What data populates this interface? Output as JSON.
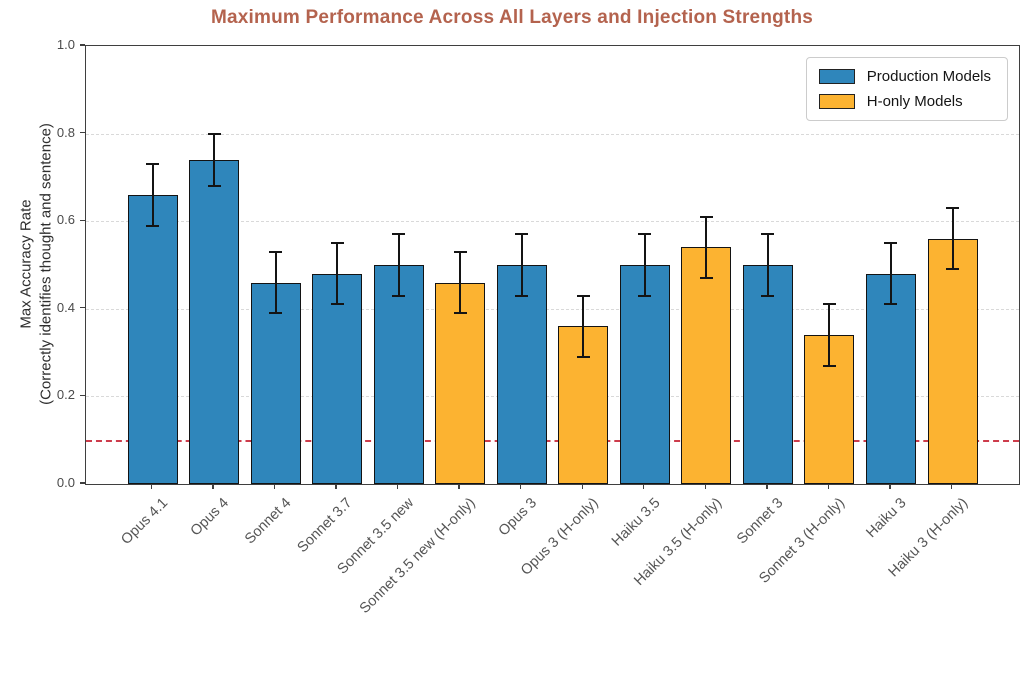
{
  "colors": {
    "production": "#2f86bb",
    "h_only": "#fcb331",
    "title": "#b4634e",
    "baseline": "#cd3c4b",
    "grid": "#d9d9d9",
    "bar_edge": "#131313",
    "error_bar": "#141414",
    "axis": "#3f3f3f"
  },
  "legend": {
    "items": [
      {
        "label": "Production Models",
        "color_key": "production"
      },
      {
        "label": "H-only Models",
        "color_key": "h_only"
      }
    ]
  },
  "chart_data": {
    "type": "bar",
    "title": "Maximum Performance Across All Layers and Injection Strengths",
    "ylabel_line1": "Max Accuracy Rate",
    "ylabel_line2": "(Correctly identifies thought and sentence)",
    "xlabel": "",
    "ylim": [
      0.0,
      1.0
    ],
    "y_ticks": [
      "0.0",
      "0.2",
      "0.4",
      "0.6",
      "0.8",
      "1.0"
    ],
    "grid": "horizontal-dashed",
    "reference_line": 0.1,
    "legend_position": "upper right",
    "bars": [
      {
        "label": "Opus 4.1",
        "group": "production",
        "value": 0.66,
        "err": 0.07
      },
      {
        "label": "Opus 4",
        "group": "production",
        "value": 0.74,
        "err": 0.06
      },
      {
        "label": "Sonnet 4",
        "group": "production",
        "value": 0.46,
        "err": 0.07
      },
      {
        "label": "Sonnet 3.7",
        "group": "production",
        "value": 0.48,
        "err": 0.07
      },
      {
        "label": "Sonnet 3.5 new",
        "group": "production",
        "value": 0.5,
        "err": 0.07
      },
      {
        "label": "Sonnet 3.5 new (H-only)",
        "group": "h_only",
        "value": 0.46,
        "err": 0.07
      },
      {
        "label": "Opus 3",
        "group": "production",
        "value": 0.5,
        "err": 0.07
      },
      {
        "label": "Opus 3 (H-only)",
        "group": "h_only",
        "value": 0.36,
        "err": 0.07
      },
      {
        "label": "Haiku 3.5",
        "group": "production",
        "value": 0.5,
        "err": 0.07
      },
      {
        "label": "Haiku 3.5 (H-only)",
        "group": "h_only",
        "value": 0.54,
        "err": 0.07
      },
      {
        "label": "Sonnet 3",
        "group": "production",
        "value": 0.5,
        "err": 0.07
      },
      {
        "label": "Sonnet 3 (H-only)",
        "group": "h_only",
        "value": 0.34,
        "err": 0.07
      },
      {
        "label": "Haiku 3",
        "group": "production",
        "value": 0.48,
        "err": 0.07
      },
      {
        "label": "Haiku 3 (H-only)",
        "group": "h_only",
        "value": 0.56,
        "err": 0.07
      }
    ]
  }
}
